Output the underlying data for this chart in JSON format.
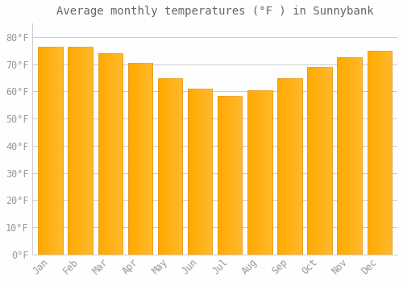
{
  "title": "Average monthly temperatures (°F ) in Sunnybank",
  "months": [
    "Jan",
    "Feb",
    "Mar",
    "Apr",
    "May",
    "Jun",
    "Jul",
    "Aug",
    "Sep",
    "Oct",
    "Nov",
    "Dec"
  ],
  "values": [
    76.5,
    76.5,
    74.0,
    70.5,
    65.0,
    61.0,
    58.5,
    60.5,
    65.0,
    69.0,
    72.5,
    75.0
  ],
  "bar_color": "#FFAA00",
  "bar_edge_color": "#E08800",
  "background_color": "#FEFEFE",
  "grid_color": "#CCCCCC",
  "text_color": "#999999",
  "ylim": [
    0,
    85
  ],
  "yticks": [
    0,
    10,
    20,
    30,
    40,
    50,
    60,
    70,
    80
  ],
  "title_fontsize": 10,
  "tick_fontsize": 8.5,
  "bar_width": 0.82
}
